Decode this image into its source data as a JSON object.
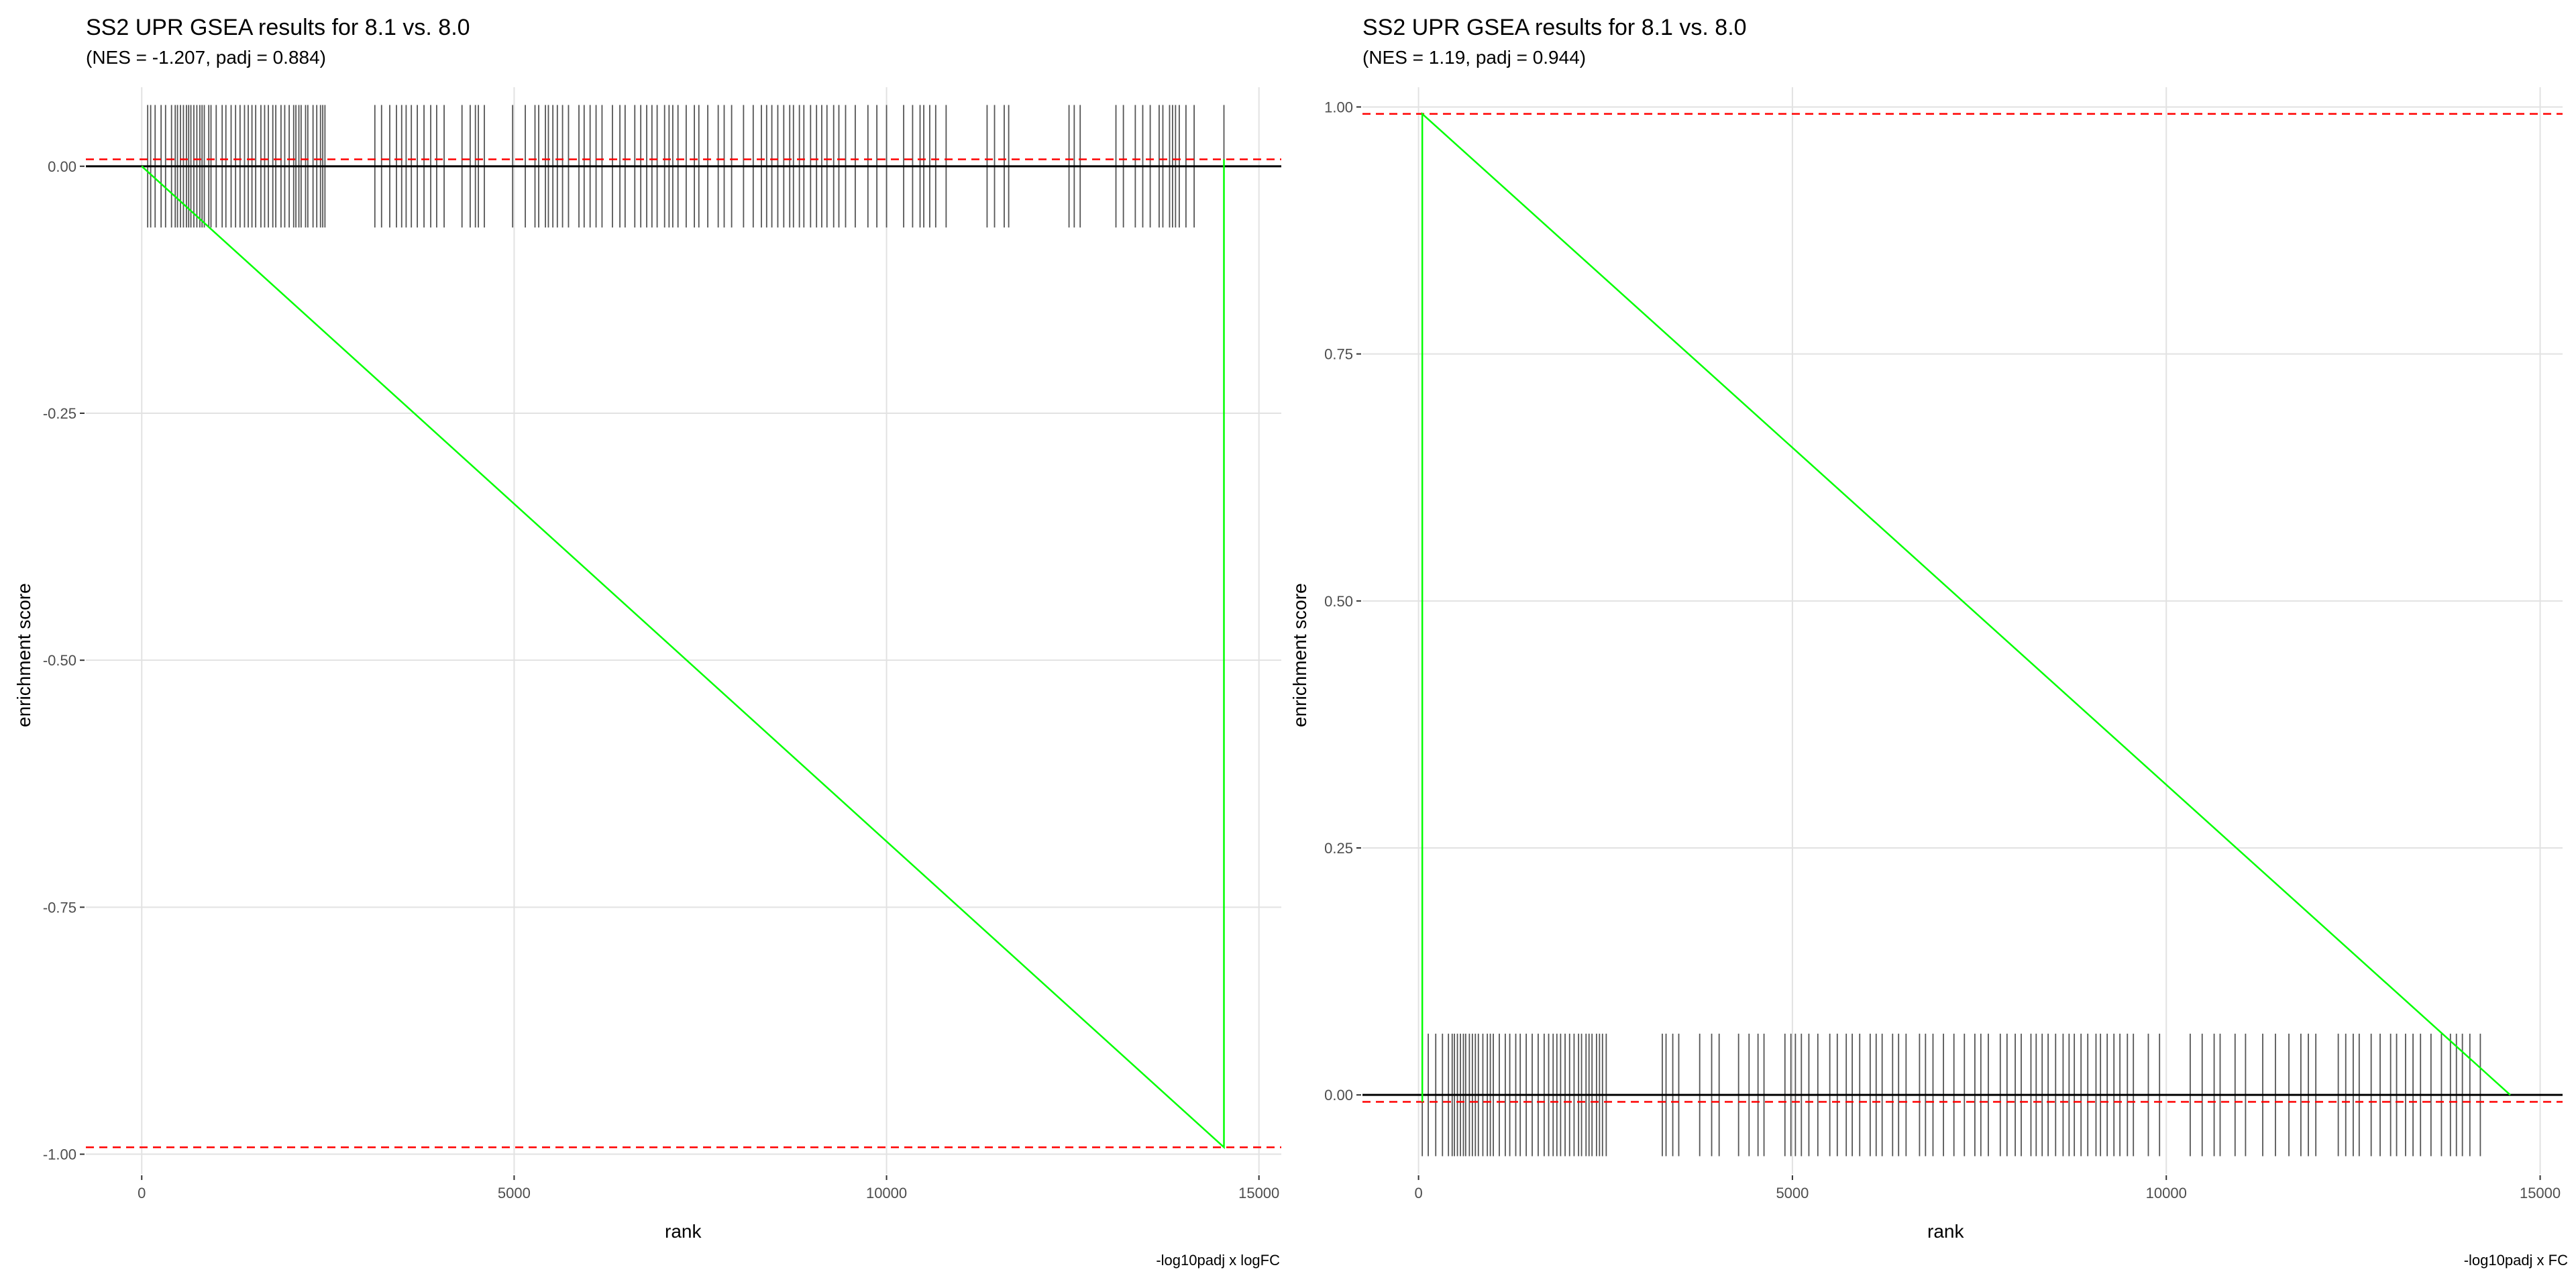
{
  "chart_data": [
    {
      "type": "line",
      "title": "SS2 UPR GSEA results for 8.1 vs. 8.0",
      "subtitle": "(NES = -1.207, padj = 0.884)",
      "xlabel": "rank",
      "ylabel": "enrichment score",
      "caption": "-log10padj x logFC",
      "xlim": [
        -750,
        15300
      ],
      "ylim": [
        -1.02,
        0.08
      ],
      "x_ticks": [
        0,
        5000,
        10000,
        15000
      ],
      "x_tick_labels": [
        "0",
        "5000",
        "10000",
        "15000"
      ],
      "y_ticks": [
        0.0,
        -0.25,
        -0.5,
        -0.75,
        -1.0
      ],
      "y_tick_labels": [
        "0.00",
        "-0.25",
        "-0.50",
        "-0.75",
        "-1.00"
      ],
      "grid": true,
      "running_score": {
        "x": [
          0,
          14530,
          14530
        ],
        "y": [
          0.0,
          -0.993,
          0.007
        ],
        "color": "#00ff00"
      },
      "red_dashed_lines": {
        "y": [
          0.007,
          -0.993
        ],
        "color": "#ff0000"
      },
      "zero_line": {
        "y": 0,
        "color": "#000000"
      },
      "gene_rug": {
        "y_range": [
          -0.062,
          0.062
        ],
        "color": "#555555",
        "positions": [
          80,
          120,
          180,
          260,
          320,
          400,
          450,
          480,
          520,
          560,
          600,
          630,
          660,
          700,
          740,
          780,
          810,
          840,
          900,
          930,
          1000,
          1080,
          1130,
          1200,
          1260,
          1320,
          1380,
          1430,
          1480,
          1530,
          1600,
          1650,
          1700,
          1760,
          1800,
          1870,
          1920,
          1980,
          2040,
          2070,
          2110,
          2140,
          2200,
          2230,
          2300,
          2350,
          2400,
          2430,
          2460,
          3130,
          3220,
          3330,
          3420,
          3490,
          3550,
          3620,
          3700,
          3790,
          3880,
          3960,
          4060,
          4300,
          4410,
          4480,
          4520,
          4600,
          4980,
          5150,
          5280,
          5330,
          5420,
          5460,
          5520,
          5580,
          5650,
          5730,
          5870,
          5940,
          6020,
          6100,
          6180,
          6320,
          6420,
          6490,
          6620,
          6700,
          6780,
          6850,
          6920,
          7020,
          7080,
          7130,
          7200,
          7310,
          7420,
          7480,
          7600,
          7740,
          7820,
          7920,
          8080,
          8210,
          8320,
          8390,
          8460,
          8540,
          8620,
          8700,
          8750,
          8830,
          8890,
          8980,
          9060,
          9130,
          9200,
          9290,
          9360,
          9450,
          9580,
          9750,
          9870,
          10000,
          10230,
          10350,
          10450,
          10500,
          10580,
          10660,
          10800,
          11350,
          11450,
          11580,
          11640,
          12450,
          12520,
          12600,
          13080,
          13180,
          13340,
          13440,
          13540,
          13660,
          13710,
          13800,
          13840,
          13880,
          13930,
          14020,
          14130,
          14530
        ]
      }
    },
    {
      "type": "line",
      "title": "SS2 UPR GSEA results for 8.1 vs. 8.0",
      "subtitle": "(NES = 1.19, padj = 0.944)",
      "xlabel": "rank",
      "ylabel": "enrichment score",
      "caption": "-log10padj x FC",
      "xlim": [
        -750,
        15300
      ],
      "ylim": [
        -0.08,
        1.02
      ],
      "x_ticks": [
        0,
        5000,
        10000,
        15000
      ],
      "x_tick_labels": [
        "0",
        "5000",
        "10000",
        "15000"
      ],
      "y_ticks": [
        1.0,
        0.75,
        0.5,
        0.25,
        0.0
      ],
      "y_tick_labels": [
        "1.00",
        "0.75",
        "0.50",
        "0.25",
        "0.00"
      ],
      "grid": true,
      "running_score": {
        "x": [
          50,
          50,
          14600
        ],
        "y": [
          -0.007,
          0.993,
          0.0
        ],
        "color": "#00ff00"
      },
      "red_dashed_lines": {
        "y": [
          0.993,
          -0.007
        ],
        "color": "#ff0000"
      },
      "zero_line": {
        "y": 0,
        "color": "#000000"
      },
      "gene_rug": {
        "y_range": [
          -0.062,
          0.062
        ],
        "color": "#555555",
        "positions": [
          50,
          130,
          230,
          320,
          400,
          450,
          480,
          520,
          560,
          600,
          630,
          680,
          720,
          760,
          800,
          860,
          920,
          960,
          1000,
          1080,
          1160,
          1220,
          1300,
          1360,
          1440,
          1520,
          1600,
          1680,
          1740,
          1800,
          1850,
          1900,
          1960,
          2020,
          2080,
          2140,
          2180,
          2240,
          2280,
          2320,
          2380,
          2420,
          2460,
          2510,
          3260,
          3310,
          3400,
          3480,
          3760,
          3920,
          4020,
          4280,
          4420,
          4540,
          4620,
          4900,
          4980,
          5040,
          5120,
          5220,
          5340,
          5500,
          5600,
          5720,
          5800,
          5900,
          6040,
          6120,
          6200,
          6340,
          6420,
          6520,
          6700,
          6780,
          6880,
          7020,
          7160,
          7300,
          7440,
          7520,
          7620,
          7780,
          7870,
          7980,
          8060,
          8190,
          8260,
          8340,
          8420,
          8520,
          8620,
          8700,
          8770,
          8860,
          8950,
          9060,
          9120,
          9210,
          9300,
          9380,
          9480,
          9560,
          9760,
          9910,
          10320,
          10480,
          10640,
          10720,
          10920,
          11060,
          11290,
          11460,
          11640,
          11800,
          11900,
          12000,
          12300,
          12400,
          12500,
          12580,
          12740,
          12860,
          13000,
          13080,
          13200,
          13300,
          13400,
          13540,
          13680,
          13800,
          13880,
          13960,
          14060,
          14200
        ]
      }
    }
  ]
}
